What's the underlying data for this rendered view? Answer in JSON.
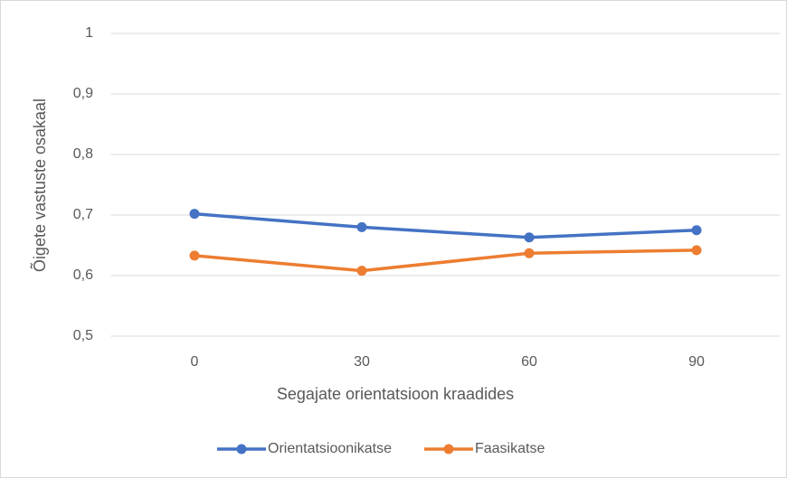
{
  "chart_data": {
    "type": "line",
    "x_label": "Segajate orientatsioon kraadides",
    "y_label": "Õigete vastuste osakaal",
    "categories": [
      "0",
      "30",
      "60",
      "90"
    ],
    "series": [
      {
        "name": "Orientatsioonikatse",
        "color": "#4472c4",
        "values": [
          0.702,
          0.68,
          0.663,
          0.675
        ]
      },
      {
        "name": "Faasikatse",
        "color": "#ed7d31",
        "values": [
          0.633,
          0.608,
          0.637,
          0.642
        ]
      }
    ],
    "ylim": [
      0.5,
      1
    ],
    "yticks": [
      {
        "value": 0.5,
        "label": "0,5"
      },
      {
        "value": 0.6,
        "label": "0,6"
      },
      {
        "value": 0.7,
        "label": "0,7"
      },
      {
        "value": 0.8,
        "label": "0,8"
      },
      {
        "value": 0.9,
        "label": "0,9"
      },
      {
        "value": 1,
        "label": "1"
      }
    ],
    "grid": true,
    "legend": "bottom"
  }
}
